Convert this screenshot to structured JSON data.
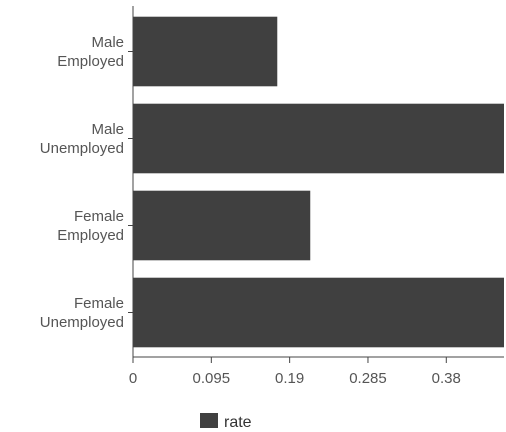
{
  "chart_data": {
    "type": "bar",
    "orientation": "horizontal",
    "categories": [
      [
        "Male",
        "Employed"
      ],
      [
        "Male",
        "Unemployed"
      ],
      [
        "Female",
        "Employed"
      ],
      [
        "Female",
        "Unemployed"
      ]
    ],
    "series": [
      {
        "name": "rate",
        "values": [
          0.175,
          0.45,
          0.215,
          0.45
        ]
      }
    ],
    "xticks": [
      0,
      0.095,
      0.19,
      0.285,
      0.38
    ],
    "xtick_labels": [
      "0",
      "0.095",
      "0.19",
      "0.285",
      "0.38"
    ],
    "xlim": [
      0,
      0.45
    ],
    "title": "",
    "xlabel": "",
    "ylabel": "",
    "grid": false,
    "legend_position": "bottom",
    "bar_color": "#404040"
  }
}
